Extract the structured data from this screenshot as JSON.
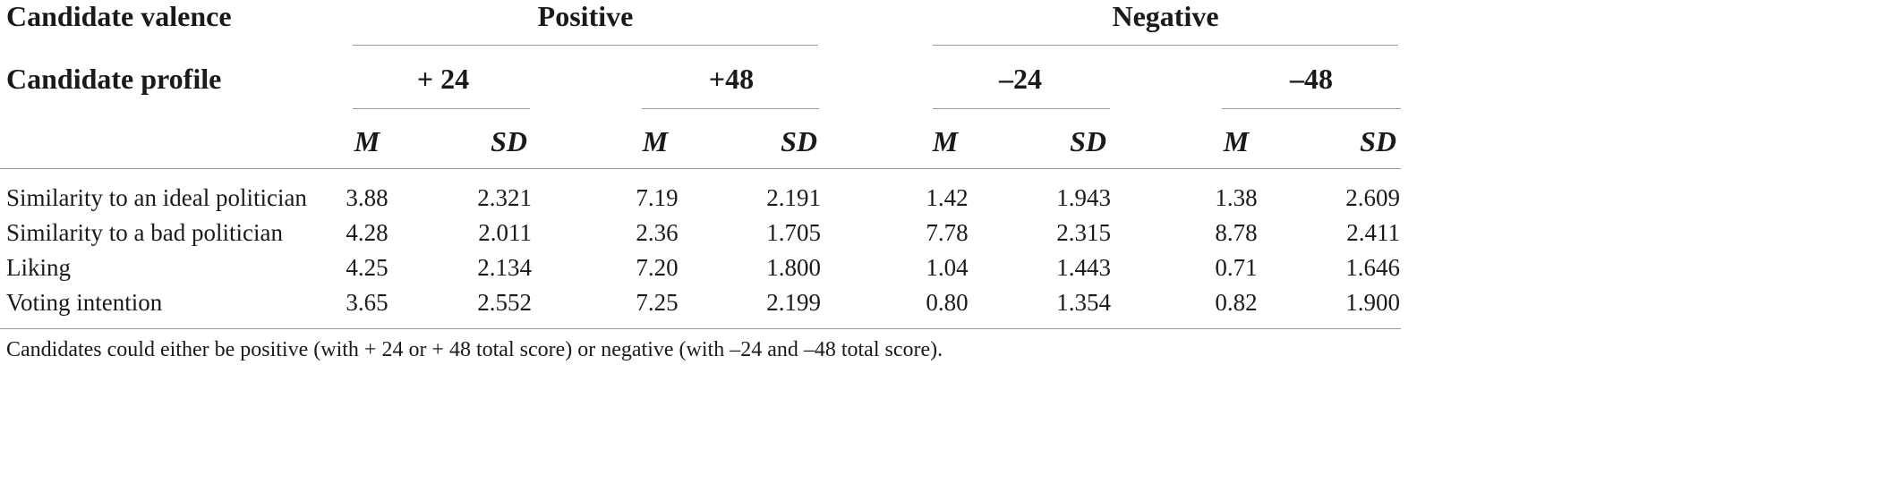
{
  "table": {
    "valence_label": "Candidate valence",
    "profile_label": "Candidate profile",
    "groups": [
      {
        "label": "Positive"
      },
      {
        "label": "Negative"
      }
    ],
    "profiles": [
      {
        "label": "+ 24"
      },
      {
        "label": "+48"
      },
      {
        "label": "–24"
      },
      {
        "label": "–48"
      }
    ],
    "stat_labels": {
      "m": "M",
      "sd": "SD"
    },
    "rows": [
      {
        "label": "Similarity to an ideal politician",
        "values": [
          "3.88",
          "2.321",
          "7.19",
          "2.191",
          "1.42",
          "1.943",
          "1.38",
          "2.609"
        ]
      },
      {
        "label": "Similarity to a bad politician",
        "values": [
          "4.28",
          "2.011",
          "2.36",
          "1.705",
          "7.78",
          "2.315",
          "8.78",
          "2.411"
        ]
      },
      {
        "label": "Liking",
        "values": [
          "4.25",
          "2.134",
          "7.20",
          "1.800",
          "1.04",
          "1.443",
          "0.71",
          "1.646"
        ]
      },
      {
        "label": "Voting intention",
        "values": [
          "3.65",
          "2.552",
          "7.25",
          "2.199",
          "0.80",
          "1.354",
          "0.82",
          "1.900"
        ]
      }
    ],
    "footnote": "Candidates could either be positive (with + 24 or + 48 total score) or negative (with –24 and –48 total score)."
  }
}
